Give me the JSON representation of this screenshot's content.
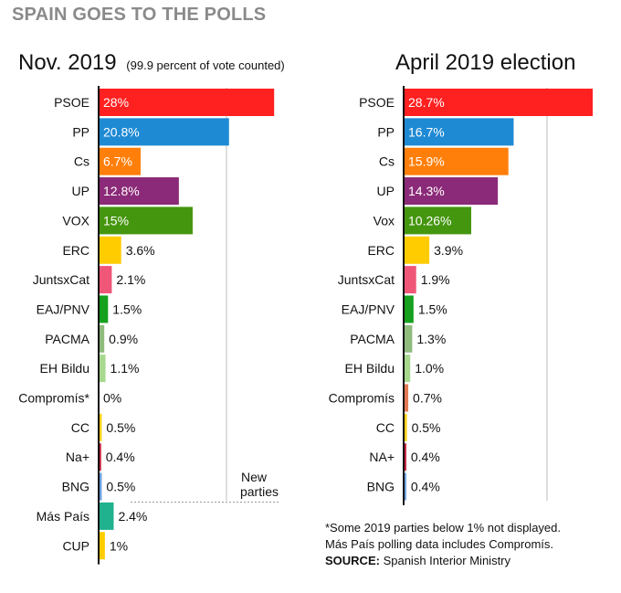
{
  "title": "SPAIN GOES TO THE POLLS",
  "chart_data": [
    {
      "type": "bar",
      "orientation": "horizontal",
      "title": "Nov. 2019",
      "subtitle": "(99.9 percent of vote counted)",
      "xlim": [
        0,
        28.7
      ],
      "categories": [
        "PSOE",
        "PP",
        "Cs",
        "UP",
        "VOX",
        "ERC",
        "JuntsxCat",
        "EAJ/PNV",
        "PACMA",
        "EH Bildu",
        "Compromís*",
        "CC",
        "Na+",
        "BNG",
        "Más País",
        "CUP"
      ],
      "values": [
        28,
        20.8,
        6.7,
        12.8,
        15,
        3.6,
        2.1,
        1.5,
        0.9,
        1.1,
        0,
        0.5,
        0.4,
        0.5,
        2.4,
        1
      ],
      "labels": [
        "28%",
        "20.8%",
        "6.7%",
        "12.8%",
        "15%",
        "3.6%",
        "2.1%",
        "1.5%",
        "0.9%",
        "1.1%",
        "0%",
        "0.5%",
        "0.4%",
        "0.5%",
        "2.4%",
        "1%"
      ],
      "colors": [
        "#ff2020",
        "#1f8ad4",
        "#ff7f0a",
        "#8b2a78",
        "#45960f",
        "#ffcc00",
        "#ef5677",
        "#15a01d",
        "#8fbb7d",
        "#a7d88e",
        "#e47a55",
        "#ffd11a",
        "#c4213b",
        "#6c9fde",
        "#20b18f",
        "#ffcc00"
      ],
      "annotation": "New parties"
    },
    {
      "type": "bar",
      "orientation": "horizontal",
      "title": "April 2019 election",
      "xlim": [
        0,
        28.7
      ],
      "categories": [
        "PSOE",
        "PP",
        "Cs",
        "UP",
        "Vox",
        "ERC",
        "JuntsxCat",
        "EAJ/PNV",
        "PACMA",
        "EH Bildu",
        "Compromís",
        "CC",
        "NA+",
        "BNG"
      ],
      "values": [
        28.7,
        16.7,
        15.9,
        14.3,
        10.26,
        3.9,
        1.9,
        1.5,
        1.3,
        1.0,
        0.7,
        0.5,
        0.4,
        0.4
      ],
      "labels": [
        "28.7%",
        "16.7%",
        "15.9%",
        "14.3%",
        "10.26%",
        "3.9%",
        "1.9%",
        "1.5%",
        "1.3%",
        "1.0%",
        "0.7%",
        "0.5%",
        "0.4%",
        "0.4%"
      ],
      "colors": [
        "#ff2020",
        "#1f8ad4",
        "#ff7f0a",
        "#8b2a78",
        "#45960f",
        "#ffcc00",
        "#ef5677",
        "#15a01d",
        "#8fbb7d",
        "#a7d88e",
        "#e47a55",
        "#ffd11a",
        "#c4213b",
        "#6c9fde"
      ]
    }
  ],
  "footnotes": {
    "line1": "*Some 2019 parties below 1% not displayed.",
    "line2": "Más País polling data includes Compromís.",
    "source_label": "SOURCE:",
    "source_text": " Spanish Interior Ministry"
  }
}
